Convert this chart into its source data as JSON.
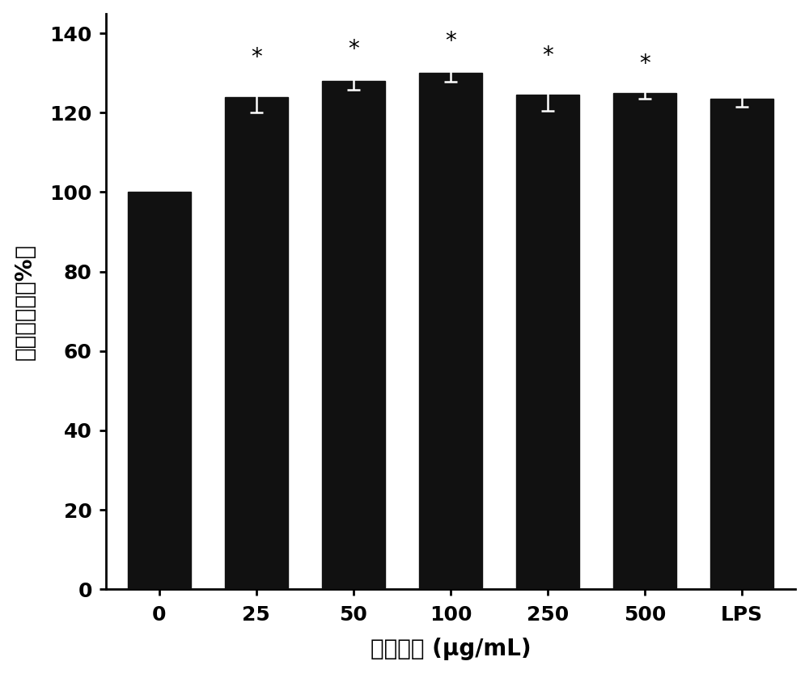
{
  "categories": [
    "0",
    "25",
    "50",
    "100",
    "250",
    "500",
    "LPS"
  ],
  "values": [
    100.0,
    124.0,
    128.0,
    130.0,
    124.5,
    125.0,
    123.5
  ],
  "errors": [
    0.0,
    4.0,
    2.2,
    2.2,
    4.0,
    1.5,
    2.0
  ],
  "bar_color": "#111111",
  "bar_width": 0.65,
  "has_asterisk": [
    false,
    true,
    true,
    true,
    true,
    true,
    false
  ],
  "xlabel": "多糖浓度 (μg/mL)",
  "ylabel": "细胞存活率（%）",
  "ylim": [
    0,
    145
  ],
  "yticks": [
    0,
    20,
    40,
    60,
    80,
    100,
    120,
    140
  ],
  "background_color": "#ffffff",
  "asterisk_fontsize": 20,
  "tick_fontsize": 18,
  "xlabel_fontsize": 20,
  "ylabel_fontsize": 20,
  "figsize": [
    10.0,
    8.33
  ],
  "dpi": 100
}
